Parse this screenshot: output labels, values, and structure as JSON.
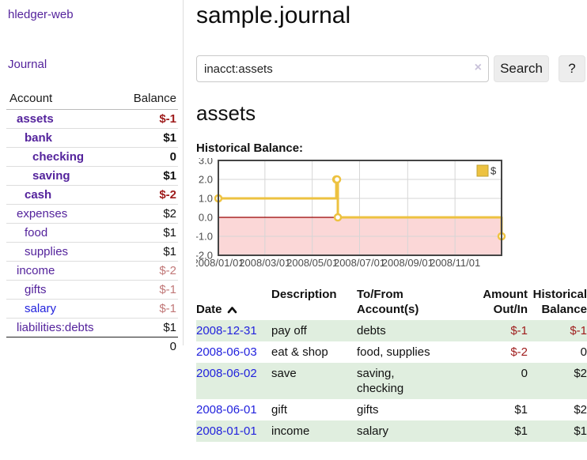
{
  "colors": {
    "link_purple": "#54239c",
    "link_blue": "#2222dd",
    "negative_strong": "#9e1b1b",
    "negative_soft": "#c17878",
    "row_stripe_green": "#e0eedf",
    "chart_gold": "#edc240"
  },
  "sidebar": {
    "brand": "hledger-web",
    "journal_link": "Journal",
    "accounts_table": {
      "headers": {
        "account": "Account",
        "balance": "Balance"
      },
      "rows": [
        {
          "account": "assets",
          "indent": 1,
          "bold": true,
          "balance": "$-1",
          "balance_style": "bal-neg-strong",
          "link_style": ""
        },
        {
          "account": "bank",
          "indent": 2,
          "bold": true,
          "balance": "$1",
          "balance_style": "bal-pos-strong",
          "link_style": ""
        },
        {
          "account": "checking",
          "indent": 3,
          "bold": true,
          "balance": "0",
          "balance_style": "bal-pos-strong",
          "link_style": ""
        },
        {
          "account": "saving",
          "indent": 3,
          "bold": true,
          "balance": "$1",
          "balance_style": "bal-pos-strong",
          "link_style": ""
        },
        {
          "account": "cash",
          "indent": 2,
          "bold": true,
          "balance": "$-2",
          "balance_style": "bal-neg-strong",
          "link_style": ""
        },
        {
          "account": "expenses",
          "indent": 1,
          "bold": false,
          "balance": "$2",
          "balance_style": "bal-pos",
          "link_style": ""
        },
        {
          "account": "food",
          "indent": 2,
          "bold": false,
          "balance": "$1",
          "balance_style": "bal-pos",
          "link_style": ""
        },
        {
          "account": "supplies",
          "indent": 2,
          "bold": false,
          "balance": "$1",
          "balance_style": "bal-pos",
          "link_style": ""
        },
        {
          "account": "income",
          "indent": 1,
          "bold": false,
          "balance": "$-2",
          "balance_style": "bal-neg-soft",
          "link_style": ""
        },
        {
          "account": "gifts",
          "indent": 2,
          "bold": false,
          "balance": "$-1",
          "balance_style": "bal-neg-soft",
          "link_style": ""
        },
        {
          "account": "salary",
          "indent": 2,
          "bold": false,
          "balance": "$-1",
          "balance_style": "bal-neg-soft",
          "link_style": "blue"
        },
        {
          "account": "liabilities:debts",
          "indent": 1,
          "bold": false,
          "balance": "$1",
          "balance_style": "bal-pos",
          "link_style": ""
        }
      ],
      "total": "0"
    }
  },
  "header": {
    "title": "sample.journal"
  },
  "search": {
    "query": "inacct:assets",
    "clear_icon": "×",
    "button_label": "Search",
    "help_label": "?"
  },
  "account_page": {
    "heading": "assets",
    "chart_label": "Historical Balance:"
  },
  "chart_data": {
    "type": "line",
    "title": "Historical Balance",
    "step": true,
    "series": [
      {
        "name": "$",
        "color": "#edc240",
        "points": [
          [
            "2008-01-01",
            1
          ],
          [
            "2008-06-01",
            2
          ],
          [
            "2008-06-02",
            2
          ],
          [
            "2008-06-03",
            0
          ],
          [
            "2008-12-31",
            -1
          ]
        ]
      }
    ],
    "xlim": [
      "2008-01-01",
      "2008-12-31"
    ],
    "ylim": [
      -2,
      3
    ],
    "x_ticks": [
      "2008/01/01",
      "2008/03/01",
      "2008/05/01",
      "2008/07/01",
      "2008/09/01",
      "2008/11/01"
    ],
    "y_ticks": [
      "3.0",
      "2.0",
      "1.0",
      "0.0",
      "-1.0",
      "-2.0"
    ],
    "legend_position": "top-right",
    "grid": true,
    "grid_color": "#d6d6d6",
    "border_color": "#454545",
    "axis_text_color": "#4d4d4d",
    "negative_region_color": "#fbd7d7",
    "zero_line_color": "#990000",
    "marker_fill": "#ffffff"
  },
  "register": {
    "headers": {
      "date": "Date",
      "description": "Description",
      "accounts": "To/From\nAccount(s)",
      "amount": "Amount\nOut/In",
      "balance": "Historical\nBalance"
    },
    "rows": [
      {
        "date": "2008-12-31",
        "description": "pay off",
        "accounts": "debts",
        "amount": "$-1",
        "amount_neg": true,
        "balance": "$-1",
        "balance_neg": true,
        "shaded": true
      },
      {
        "date": "2008-06-03",
        "description": "eat & shop",
        "accounts": "food, supplies",
        "amount": "$-2",
        "amount_neg": true,
        "balance": "0",
        "balance_neg": false,
        "shaded": false
      },
      {
        "date": "2008-06-02",
        "description": "save",
        "accounts": "saving,\nchecking",
        "amount": "0",
        "amount_neg": false,
        "balance": "$2",
        "balance_neg": false,
        "shaded": true
      },
      {
        "date": "2008-06-01",
        "description": "gift",
        "accounts": "gifts",
        "amount": "$1",
        "amount_neg": false,
        "balance": "$2",
        "balance_neg": false,
        "shaded": false
      },
      {
        "date": "2008-01-01",
        "description": "income",
        "accounts": "salary",
        "amount": "$1",
        "amount_neg": false,
        "balance": "$1",
        "balance_neg": false,
        "shaded": true
      }
    ]
  }
}
